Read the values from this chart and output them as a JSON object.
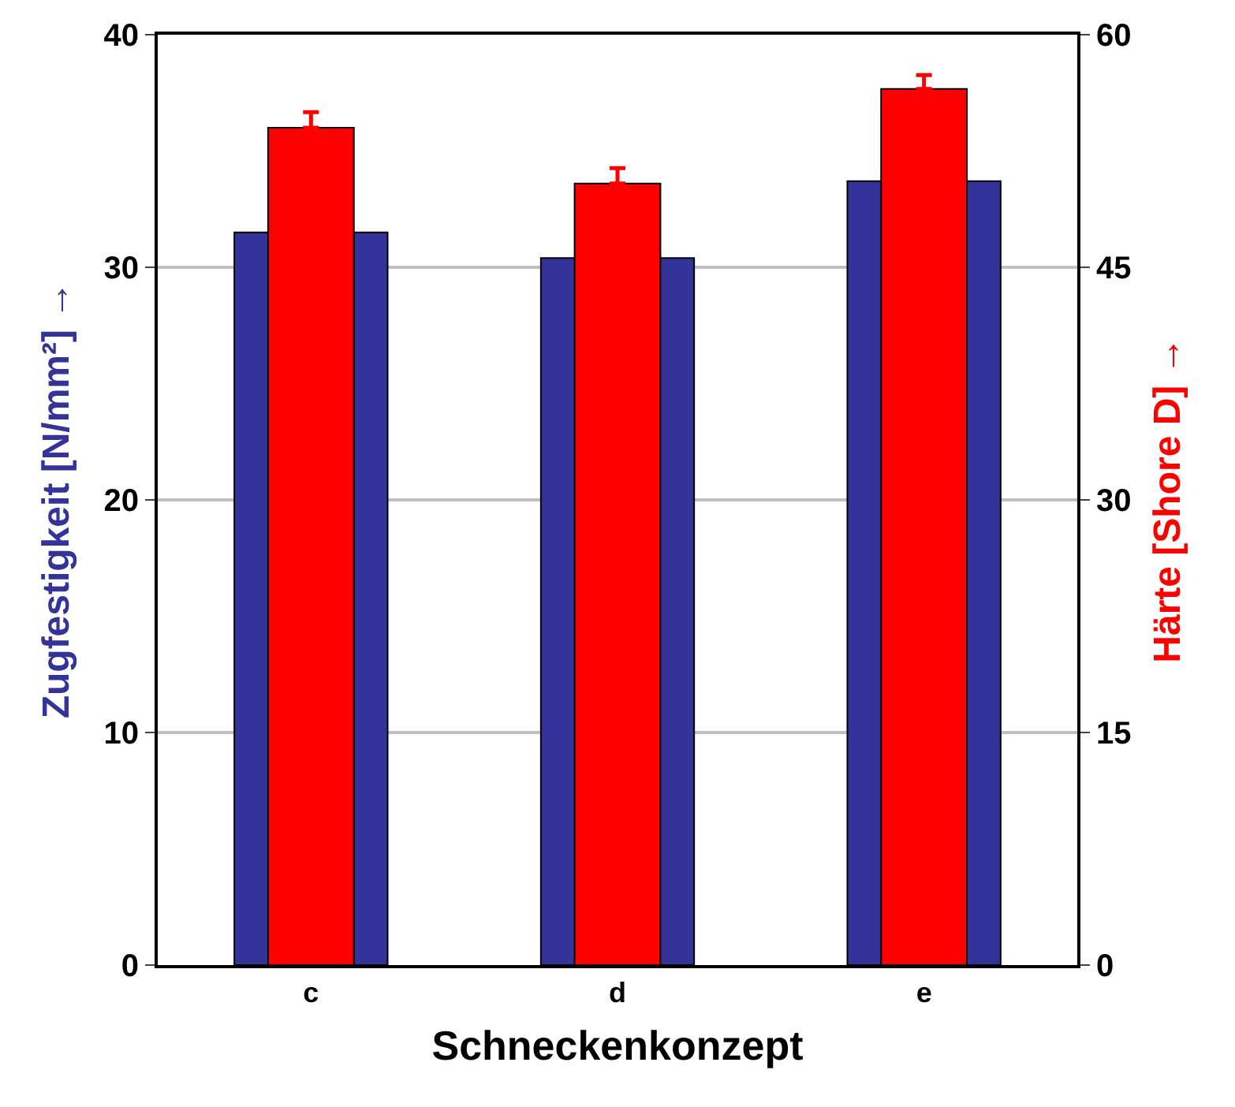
{
  "chart_data": {
    "type": "bar",
    "xlabel": "Schneckenkonzept",
    "ylabel": "Zugfestigkeit [N/mm²] →",
    "y2label": "Härte [Shore D] →",
    "categories": [
      "c",
      "d",
      "e"
    ],
    "series": [
      {
        "color": "#333399",
        "values": [
          31.5,
          30.4,
          33.7
        ]
      },
      {
        "color": "#ff0000",
        "values": [
          54.0,
          50.4,
          56.5
        ],
        "errors": [
          1.0,
          1.0,
          0.9
        ],
        "axis": "y2"
      }
    ],
    "ylim": [
      0,
      40
    ],
    "yticks": [
      0,
      10,
      20,
      30,
      40
    ],
    "y2lim": [
      0,
      60
    ],
    "y2ticks": [
      0,
      15,
      30,
      45,
      60
    ],
    "grid": "y"
  }
}
